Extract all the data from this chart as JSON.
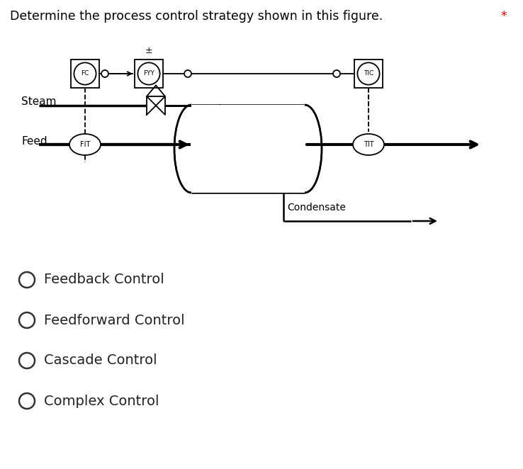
{
  "title": "Determine the process control strategy shown in this figure.",
  "title_color": "#000000",
  "asterisk_color": "#ff0000",
  "bg_color": "#ffffff",
  "options": [
    "Feedback Control",
    "Feedforward Control",
    "Cascade Control",
    "Complex Control"
  ],
  "instrument_labels": {
    "FC": "FC",
    "FYY": "FYY",
    "TIC": "TIC",
    "FIT": "FIT",
    "TIT": "TIT"
  },
  "condensate_label": "Condensate",
  "steam_label": "Steam",
  "feed_label": "Feed",
  "fig_w": 7.38,
  "fig_h": 6.62
}
